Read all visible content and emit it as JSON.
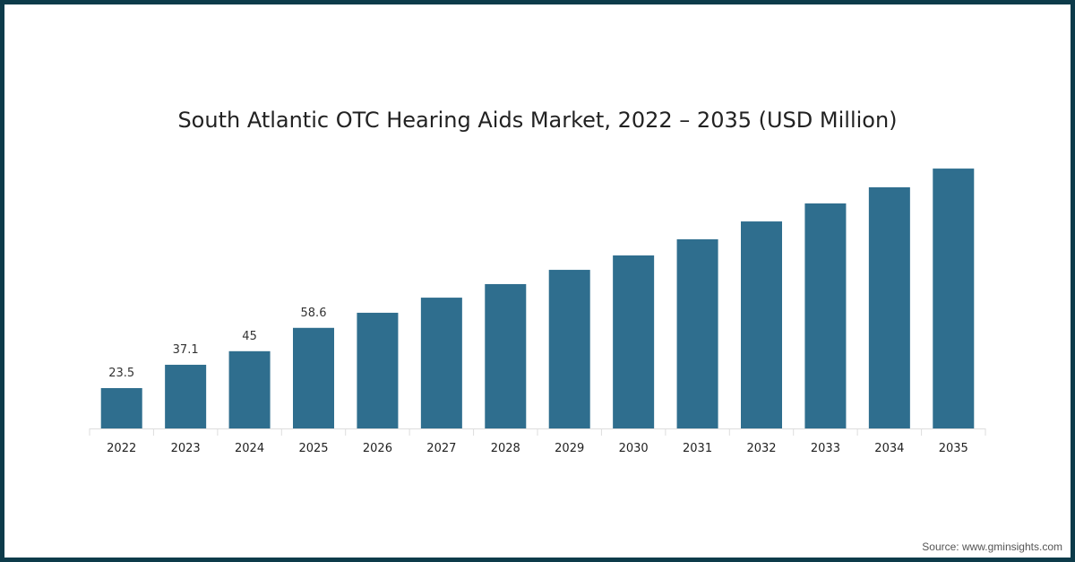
{
  "chart_data": {
    "type": "bar",
    "title": "South Atlantic OTC Hearing Aids Market, 2022 – 2035 (USD Million)",
    "xlabel": "",
    "ylabel": "",
    "categories": [
      "2022",
      "2023",
      "2024",
      "2025",
      "2026",
      "2027",
      "2028",
      "2029",
      "2030",
      "2031",
      "2032",
      "2033",
      "2034",
      "2035"
    ],
    "values": [
      23.5,
      37.1,
      45,
      58.6,
      67.4,
      76.2,
      84.1,
      92.4,
      100.8,
      110.2,
      120.6,
      131.1,
      140.5,
      151.4
    ],
    "data_labels": [
      "23.5",
      "37.1",
      "45",
      "58.6",
      "",
      "",
      "",
      "",
      "",
      "",
      "",
      "",
      "",
      ""
    ],
    "ylim": [
      0,
      160
    ],
    "grid": false,
    "bar_color": "#2f6e8e",
    "border_color": "#0d3b4a"
  },
  "source": "Source: www.gminsights.com"
}
